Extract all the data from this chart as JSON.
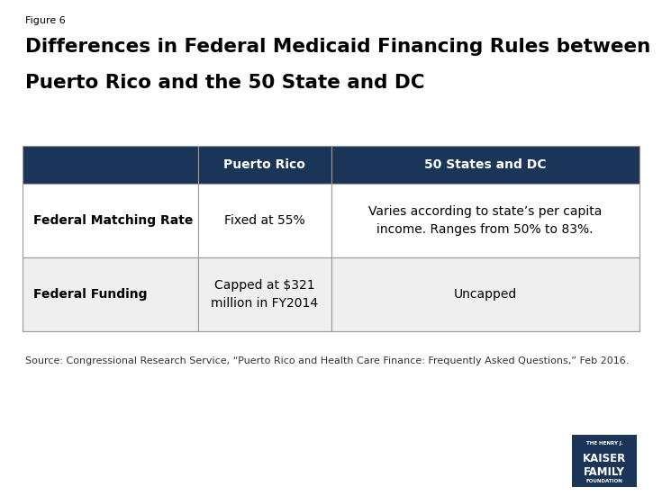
{
  "figure_label": "Figure 6",
  "title_line1": "Differences in Federal Medicaid Financing Rules between",
  "title_line2": "Puerto Rico and the 50 State and DC",
  "header_bg_color": "#1a3558",
  "header_text_color": "#ffffff",
  "col1_header": "Puerto Rico",
  "col2_header": "50 States and DC",
  "row1_col0": "Federal Matching Rate",
  "row1_col1": "Fixed at 55%",
  "row1_col2": "Varies according to state’s per capita\nincome. Ranges from 50% to 83%.",
  "row2_col0": "Federal Funding",
  "row2_col1": "Capped at $321\nmillion in FY2014",
  "row2_col2": "Uncapped",
  "row1_bg": "#ffffff",
  "row2_bg": "#efefef",
  "border_color": "#999999",
  "source_text": "Source: Congressional Research Service, “Puerto Rico and Health Care Finance: Frequently Asked Questions,” Feb 2016.",
  "logo_bg": "#1a3558",
  "logo_line1": "THE HENRY J.",
  "logo_line2": "KAISER",
  "logo_line3": "FAMILY",
  "logo_line4": "FOUNDATION",
  "fig_width": 7.35,
  "fig_height": 5.51,
  "fig_dpi": 100
}
